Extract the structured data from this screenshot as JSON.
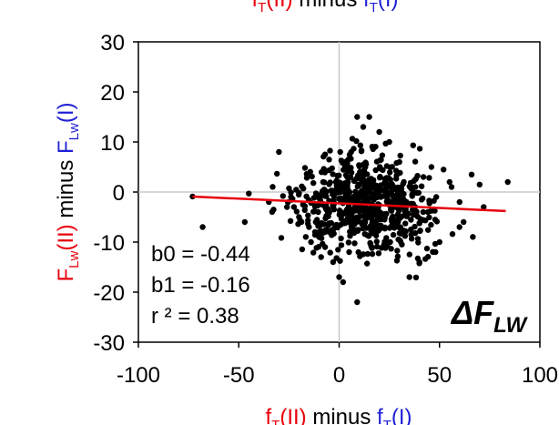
{
  "chart_data": {
    "type": "scatter",
    "title": {
      "parts": [
        {
          "text": "f",
          "sub": "T",
          "suffix": "(II)",
          "color": "#e8000b"
        },
        {
          "text": " minus ",
          "color": "#000000"
        },
        {
          "text": "f",
          "sub": "T",
          "suffix": "(I)",
          "color": "#1f1fd6"
        }
      ]
    },
    "xlabel": {
      "parts": [
        {
          "text": "f",
          "sub": "T",
          "suffix": "(II)",
          "color": "#e8000b"
        },
        {
          "text": " minus ",
          "color": "#000000"
        },
        {
          "text": "f",
          "sub": "T",
          "suffix": "(I)",
          "color": "#1f1fd6"
        }
      ]
    },
    "ylabel": {
      "parts": [
        {
          "text": "F",
          "sub": "Lw",
          "suffix": "(II)",
          "color": "#e8000b"
        },
        {
          "text": " minus ",
          "color": "#000000"
        },
        {
          "text": "F",
          "sub": "Lw",
          "suffix": "(I)",
          "color": "#1f1fd6"
        }
      ]
    },
    "xlim": [
      -100,
      100
    ],
    "ylim": [
      -30,
      30
    ],
    "xticks": [
      -100,
      -50,
      0,
      50,
      100
    ],
    "xtick_labels": [
      "-100",
      "-50",
      "0",
      "50",
      "100"
    ],
    "yticks": [
      -30,
      -20,
      -10,
      0,
      10,
      20,
      30
    ],
    "ytick_labels": [
      "-30",
      "-20",
      "-10",
      "0",
      "10",
      "20",
      "30"
    ],
    "zero_lines": true,
    "stats": [
      "b0 = -0.44",
      "b1 = -0.16",
      "r ² = 0.38"
    ],
    "panel_label": {
      "symbol": "ΔF",
      "sub": "LW"
    },
    "regression": {
      "b0": -0.44,
      "b1": -0.16,
      "x_range": [
        -73,
        83
      ],
      "color": "#e8000b"
    },
    "points_color": "#000000",
    "point_count": 720,
    "points_sample": [
      [
        -73,
        -0.9
      ],
      [
        -68,
        -7
      ],
      [
        -47,
        -6
      ],
      [
        -45,
        -0.3
      ],
      [
        -35,
        -2
      ],
      [
        -30,
        8
      ],
      [
        -28,
        -0.8
      ],
      [
        -26,
        -3
      ],
      [
        -24,
        -1
      ],
      [
        -20,
        -5
      ],
      [
        -18,
        -2.5
      ],
      [
        -15,
        -7
      ],
      [
        -14,
        -10
      ],
      [
        -12,
        -8
      ],
      [
        -10,
        -9
      ],
      [
        -9,
        -13
      ],
      [
        -8,
        2
      ],
      [
        -7,
        -11
      ],
      [
        -5,
        6.5
      ],
      [
        -3,
        -14
      ],
      [
        0,
        -17
      ],
      [
        2,
        -18
      ],
      [
        4,
        3
      ],
      [
        5,
        -12
      ],
      [
        6,
        8
      ],
      [
        9,
        -22
      ],
      [
        9,
        15
      ],
      [
        12,
        13
      ],
      [
        15,
        15
      ],
      [
        20,
        12
      ],
      [
        25,
        10
      ],
      [
        30,
        6
      ],
      [
        35,
        -17
      ],
      [
        38,
        1
      ],
      [
        40,
        -14
      ],
      [
        42,
        3
      ],
      [
        46,
        5
      ],
      [
        48,
        -12
      ],
      [
        50,
        -10
      ],
      [
        52,
        4.5
      ],
      [
        55,
        2
      ],
      [
        56,
        1
      ],
      [
        60,
        -2
      ],
      [
        62,
        -6
      ],
      [
        66,
        3.5
      ],
      [
        70,
        1.5
      ],
      [
        72,
        -3
      ],
      [
        84,
        2
      ]
    ]
  }
}
